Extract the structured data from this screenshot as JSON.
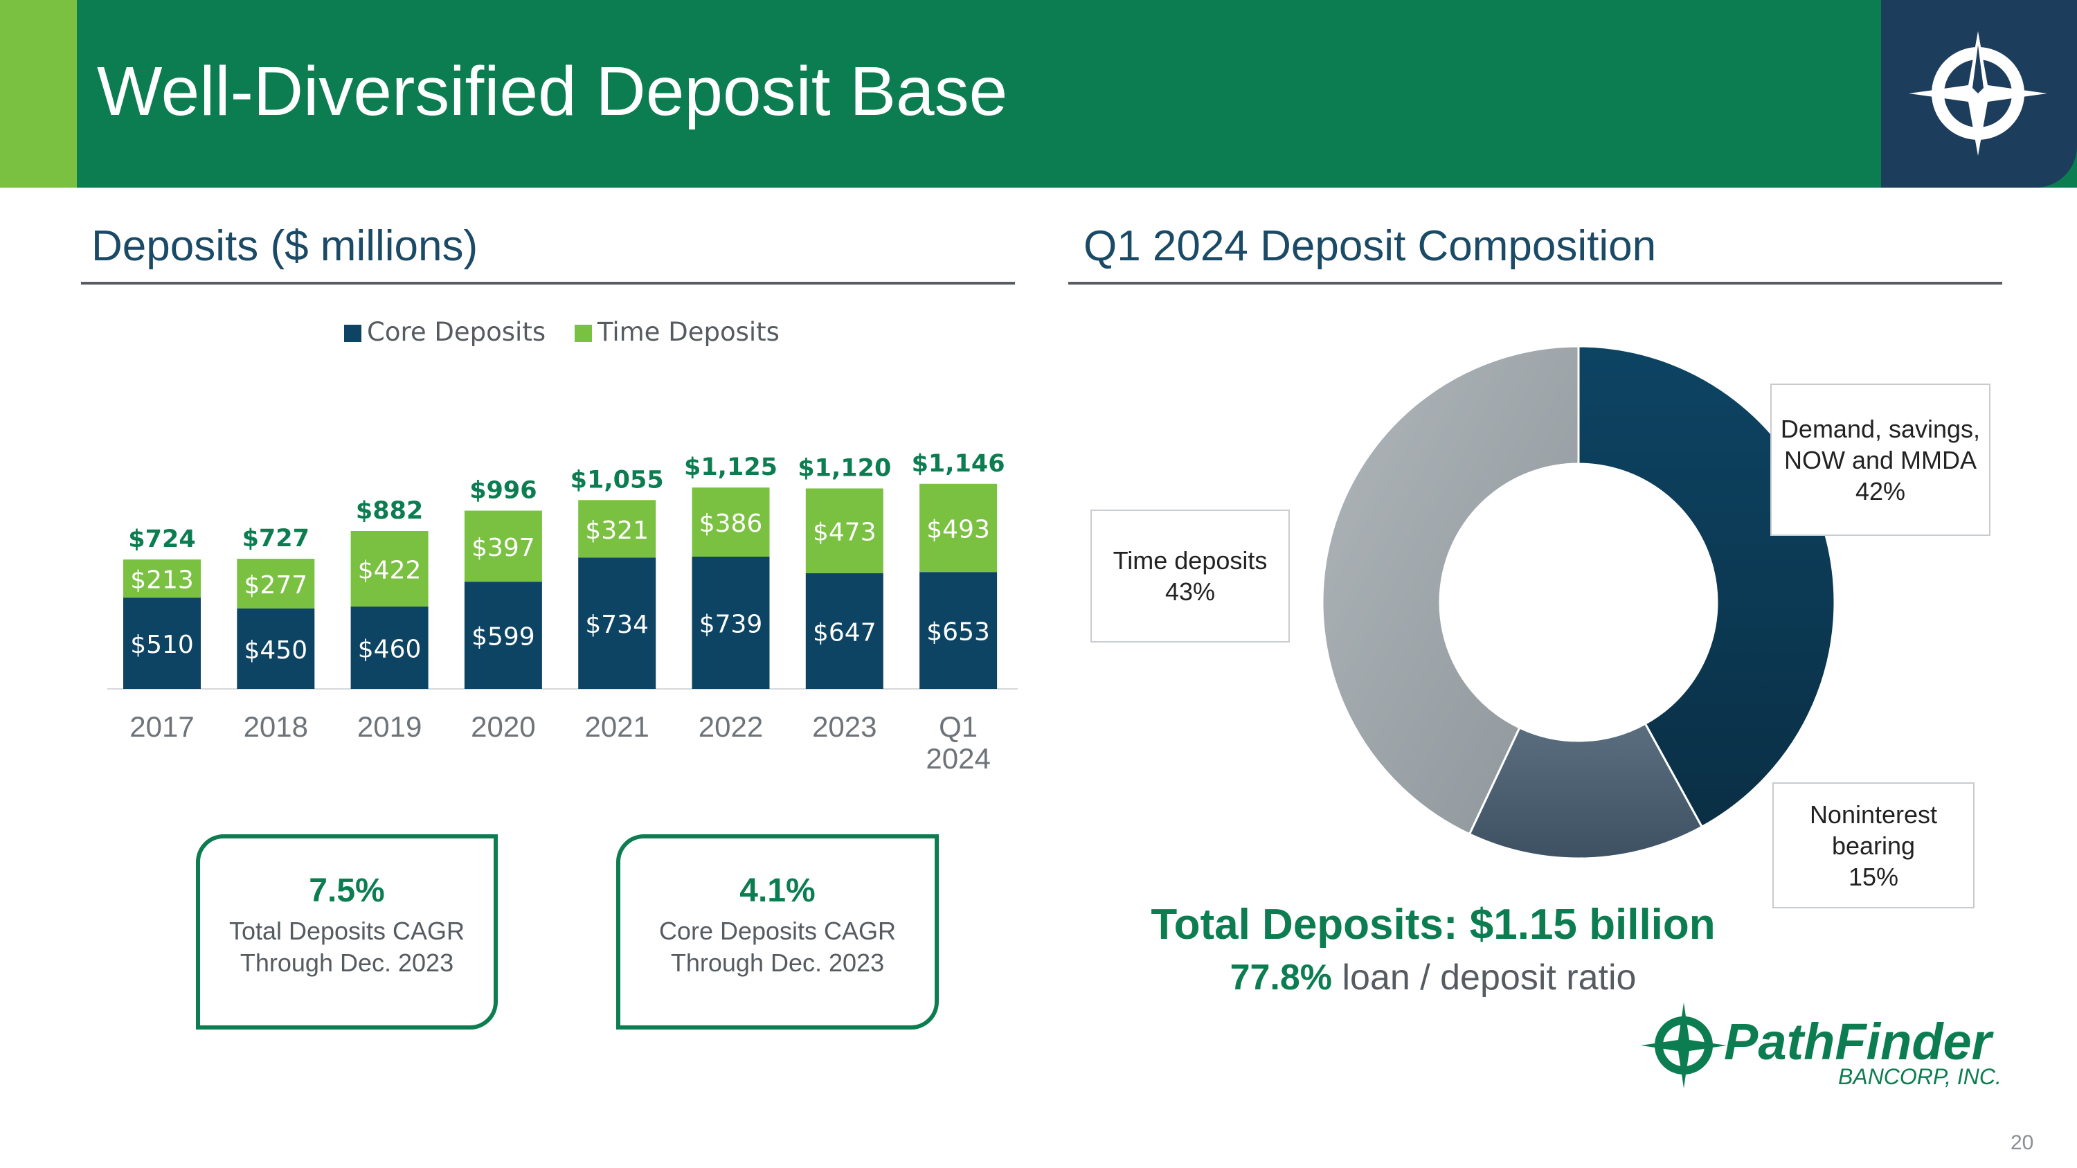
{
  "header": {
    "title": "Well-Diversified Deposit Base",
    "logo_icon": "compass-star-icon"
  },
  "left_section": {
    "title": "Deposits ($ millions)"
  },
  "right_section": {
    "title": "Q1 2024 Deposit Composition"
  },
  "colors": {
    "core": "#0d4463",
    "time": "#7ac142",
    "green_text": "#0c7d51",
    "navy": "#1d3d5c",
    "gray_slice": "#9ea6ab",
    "slate_slice": "#54687a"
  },
  "chart_data": [
    {
      "type": "bar",
      "stacked": true,
      "categories": [
        "2017",
        "2018",
        "2019",
        "2020",
        "2021",
        "2022",
        "2023",
        "Q1 2024"
      ],
      "series": [
        {
          "name": "Core Deposits",
          "values": [
            510,
            450,
            460,
            599,
            734,
            739,
            647,
            653
          ],
          "labels": [
            "$510",
            "$450",
            "$460",
            "$599",
            "$734",
            "$739",
            "$647",
            "$653"
          ]
        },
        {
          "name": "Time Deposits",
          "values": [
            213,
            277,
            422,
            397,
            321,
            386,
            473,
            493
          ],
          "labels": [
            "$213",
            "$277",
            "$422",
            "$397",
            "$321",
            "$386",
            "$473",
            "$493"
          ]
        }
      ],
      "totals": [
        "$724",
        "$727",
        "$882",
        "$996",
        "$1,055",
        "$1,125",
        "$1,120",
        "$1,146"
      ],
      "legend_position": "top",
      "grid": false,
      "ylim": [
        0,
        1300
      ]
    },
    {
      "type": "pie",
      "donut": true,
      "title": "Q1 2024 Deposit Composition",
      "slices": [
        {
          "label": "Demand, savings, NOW and MMDA",
          "value": 42,
          "display": "42%"
        },
        {
          "label": "Noninterest bearing",
          "value": 15,
          "display": "15%"
        },
        {
          "label": "Time deposits",
          "value": 43,
          "display": "43%"
        }
      ]
    }
  ],
  "callouts": [
    {
      "value": "7.5%",
      "line1": "Total Deposits CAGR",
      "line2": "Through Dec. 2023"
    },
    {
      "value": "4.1%",
      "line1": "Core Deposits CAGR",
      "line2": "Through Dec. 2023"
    }
  ],
  "pie_labels": {
    "demand": {
      "line1": "Demand, savings,",
      "line2": "NOW and MMDA",
      "line3": "42%"
    },
    "noninterest": {
      "line1": "Noninterest",
      "line2": "bearing",
      "line3": "15%"
    },
    "time": {
      "line1": "Time deposits",
      "line2": "43%"
    }
  },
  "summary": {
    "total": "Total Deposits: $1.15 billion",
    "ratio_value": "77.8%",
    "ratio_label": "loan / deposit ratio"
  },
  "brand": {
    "name": "PathFinder",
    "sub": "BANCORP, INC."
  },
  "page_number": "20"
}
